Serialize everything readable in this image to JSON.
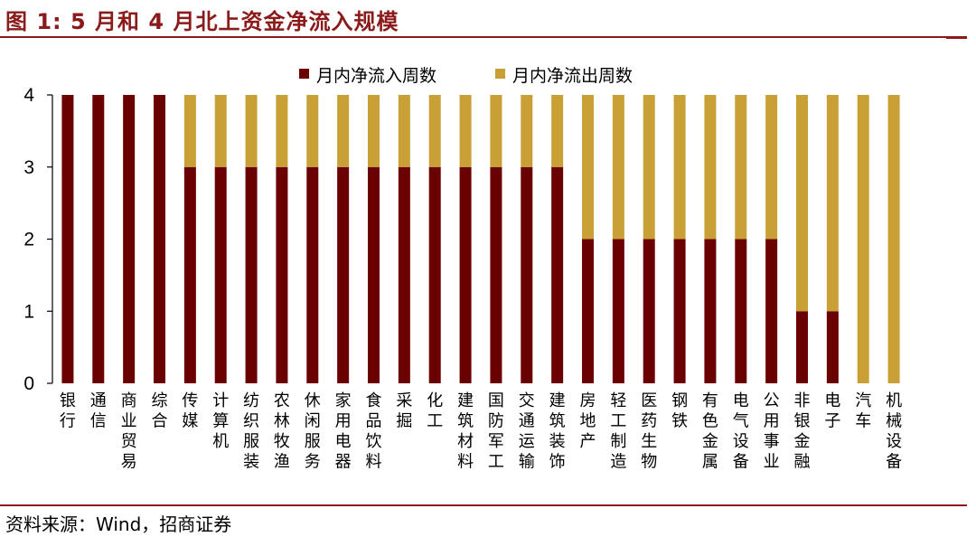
{
  "title": "图 1:  5 月和 4 月北上资金净流入规模",
  "source": "资料来源：Wind，招商证券",
  "colors": {
    "inflow": "#6b0000",
    "outflow": "#c9a035",
    "accent": "#8b1a1a"
  },
  "chart_data": {
    "type": "bar",
    "stacked": true,
    "legend_position": "top-center",
    "grid": false,
    "ylim": [
      0,
      4
    ],
    "yticks": [
      "0",
      "1",
      "2",
      "3",
      "4"
    ],
    "categories": [
      "银行",
      "通信",
      "商业贸易",
      "综合",
      "传媒",
      "计算机",
      "纺织服装",
      "农林牧渔",
      "休闲服务",
      "家用电器",
      "食品饮料",
      "采掘",
      "化工",
      "建筑材料",
      "国防军工",
      "交通运输",
      "建筑装饰",
      "房地产",
      "轻工制造",
      "医药生物",
      "钢铁",
      "有色金属",
      "电气设备",
      "公用事业",
      "非银金融",
      "电子",
      "汽车",
      "机械设备"
    ],
    "series": [
      {
        "name": "月内净流入周数",
        "values": [
          4,
          4,
          4,
          4,
          3,
          3,
          3,
          3,
          3,
          3,
          3,
          3,
          3,
          3,
          3,
          3,
          3,
          2,
          2,
          2,
          2,
          2,
          2,
          2,
          1,
          1,
          0,
          0
        ]
      },
      {
        "name": "月内净流出周数",
        "values": [
          0,
          0,
          0,
          0,
          1,
          1,
          1,
          1,
          1,
          1,
          1,
          1,
          1,
          1,
          1,
          1,
          1,
          2,
          2,
          2,
          2,
          2,
          2,
          2,
          3,
          3,
          4,
          4
        ]
      }
    ]
  }
}
